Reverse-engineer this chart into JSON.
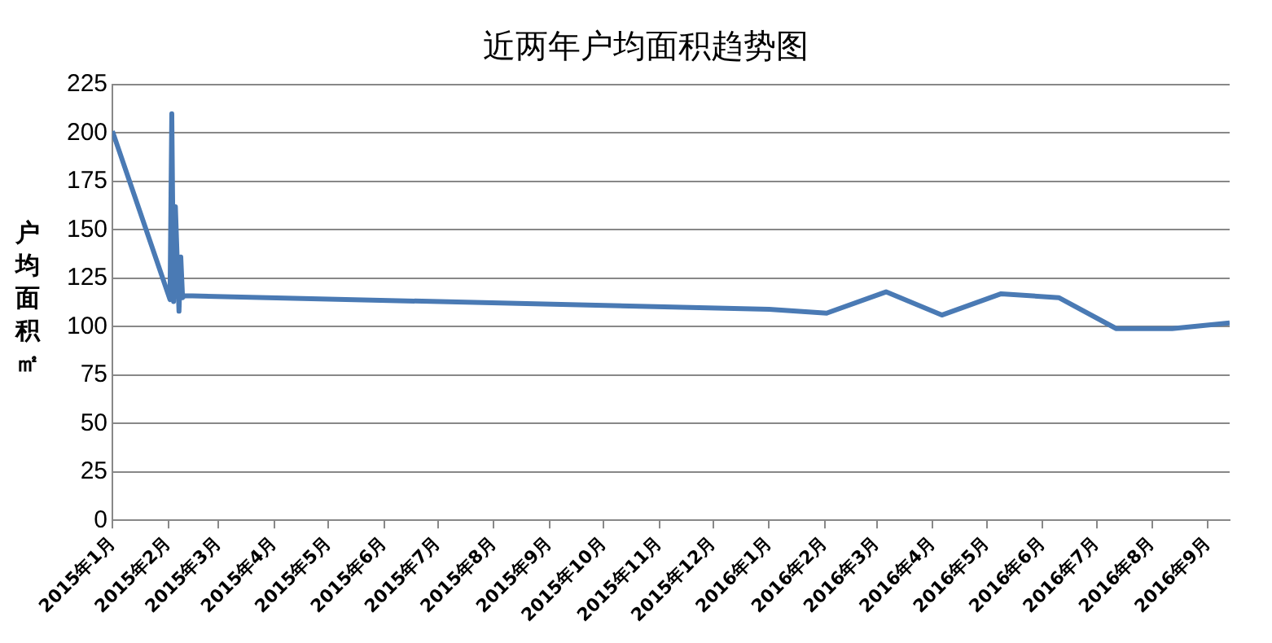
{
  "chart_data": {
    "type": "line",
    "title": "近两年户均面积趋势图",
    "ylabel": "户均面积㎡",
    "x": [
      "2015-01-01",
      "2015-02-02",
      "2015-02-03",
      "2015-02-04",
      "2015-02-05",
      "2015-02-07",
      "2015-02-08",
      "2015-02-09",
      "2015-02-10",
      "2016-01-01",
      "2016-02-02",
      "2016-03-06",
      "2016-04-06",
      "2016-05-09",
      "2016-06-10",
      "2016-07-12",
      "2016-08-12",
      "2016-09-13"
    ],
    "series": [
      {
        "color": "#4a7ab4",
        "values": [
          201,
          114,
          210,
          113,
          162,
          108,
          136,
          115,
          116,
          109,
          107,
          118,
          106,
          117,
          115,
          99,
          99,
          102
        ]
      }
    ],
    "xlim": [
      "2015-01-01",
      "2016-09-13"
    ],
    "xticks": [
      {
        "value": "2015-01",
        "label": "2015年1月"
      },
      {
        "value": "2015-02",
        "label": "2015年2月"
      },
      {
        "value": "2015-03",
        "label": "2015年3月"
      },
      {
        "value": "2015-04",
        "label": "2015年4月"
      },
      {
        "value": "2015-05",
        "label": "2015年5月"
      },
      {
        "value": "2015-06",
        "label": "2015年6月"
      },
      {
        "value": "2015-07",
        "label": "2015年7月"
      },
      {
        "value": "2015-08",
        "label": "2015年8月"
      },
      {
        "value": "2015-09",
        "label": "2015年9月"
      },
      {
        "value": "2015-10",
        "label": "2015年10月"
      },
      {
        "value": "2015-11",
        "label": "2015年11月"
      },
      {
        "value": "2015-12",
        "label": "2015年12月"
      },
      {
        "value": "2016-01",
        "label": "2016年1月"
      },
      {
        "value": "2016-02",
        "label": "2016年2月"
      },
      {
        "value": "2016-03",
        "label": "2016年3月"
      },
      {
        "value": "2016-04",
        "label": "2016年4月"
      },
      {
        "value": "2016-05",
        "label": "2016年5月"
      },
      {
        "value": "2016-06",
        "label": "2016年6月"
      },
      {
        "value": "2016-07",
        "label": "2016年7月"
      },
      {
        "value": "2016-08",
        "label": "2016年8月"
      },
      {
        "value": "2016-09",
        "label": "2016年9月"
      }
    ],
    "ylim": [
      0,
      225
    ],
    "yticks": [
      0,
      25,
      50,
      75,
      100,
      125,
      150,
      175,
      200,
      225
    ],
    "grid": "y",
    "legend": false,
    "marker": "none",
    "line_style": "solid"
  }
}
